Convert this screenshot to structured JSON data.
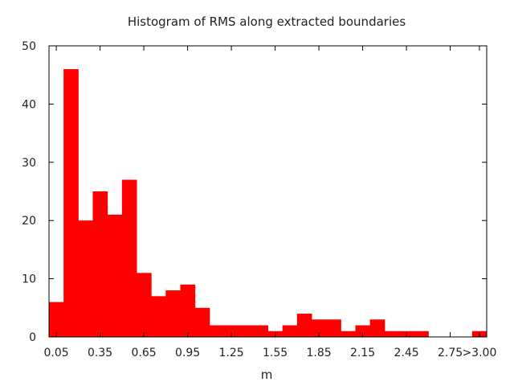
{
  "chart_data": {
    "type": "bar",
    "title": "Histogram of RMS along extracted boundaries",
    "xlabel": "m",
    "ylabel": "",
    "bar_color": "#ff0000",
    "bin_width": 0.1,
    "bins": [
      {
        "x": 0.05,
        "count": 6
      },
      {
        "x": 0.15,
        "count": 46
      },
      {
        "x": 0.25,
        "count": 20
      },
      {
        "x": 0.35,
        "count": 25
      },
      {
        "x": 0.45,
        "count": 21
      },
      {
        "x": 0.55,
        "count": 27
      },
      {
        "x": 0.65,
        "count": 11
      },
      {
        "x": 0.75,
        "count": 7
      },
      {
        "x": 0.85,
        "count": 8
      },
      {
        "x": 0.95,
        "count": 9
      },
      {
        "x": 1.05,
        "count": 5
      },
      {
        "x": 1.15,
        "count": 2
      },
      {
        "x": 1.25,
        "count": 2
      },
      {
        "x": 1.35,
        "count": 2
      },
      {
        "x": 1.45,
        "count": 2
      },
      {
        "x": 1.55,
        "count": 1
      },
      {
        "x": 1.65,
        "count": 2
      },
      {
        "x": 1.75,
        "count": 4
      },
      {
        "x": 1.85,
        "count": 3
      },
      {
        "x": 1.95,
        "count": 3
      },
      {
        "x": 2.05,
        "count": 1
      },
      {
        "x": 2.15,
        "count": 2
      },
      {
        "x": 2.25,
        "count": 3
      },
      {
        "x": 2.35,
        "count": 1
      },
      {
        "x": 2.45,
        "count": 1
      },
      {
        "x": 2.55,
        "count": 1
      },
      {
        "x": 2.65,
        "count": 0
      },
      {
        "x": 2.75,
        "count": 0
      },
      {
        "x": 2.85,
        "count": 0
      },
      {
        "x": 2.95,
        "count": 1
      }
    ],
    "xlim": [
      0.0,
      3.0
    ],
    "ylim": [
      0,
      50
    ],
    "x_ticks": [
      {
        "value": 0.05,
        "label": "0.05"
      },
      {
        "value": 0.35,
        "label": "0.35"
      },
      {
        "value": 0.65,
        "label": "0.65"
      },
      {
        "value": 0.95,
        "label": "0.95"
      },
      {
        "value": 1.25,
        "label": "1.25"
      },
      {
        "value": 1.55,
        "label": "1.55"
      },
      {
        "value": 1.85,
        "label": "1.85"
      },
      {
        "value": 2.15,
        "label": "2.15"
      },
      {
        "value": 2.45,
        "label": "2.45"
      },
      {
        "value": 2.75,
        "label": "2.75"
      },
      {
        "value": 2.95,
        "label": ">3.00"
      }
    ],
    "y_ticks": [
      {
        "value": 0,
        "label": "0"
      },
      {
        "value": 10,
        "label": "10"
      },
      {
        "value": 20,
        "label": "20"
      },
      {
        "value": 30,
        "label": "30"
      },
      {
        "value": 40,
        "label": "40"
      },
      {
        "value": 50,
        "label": "50"
      }
    ],
    "grid": false,
    "legend": "none"
  }
}
